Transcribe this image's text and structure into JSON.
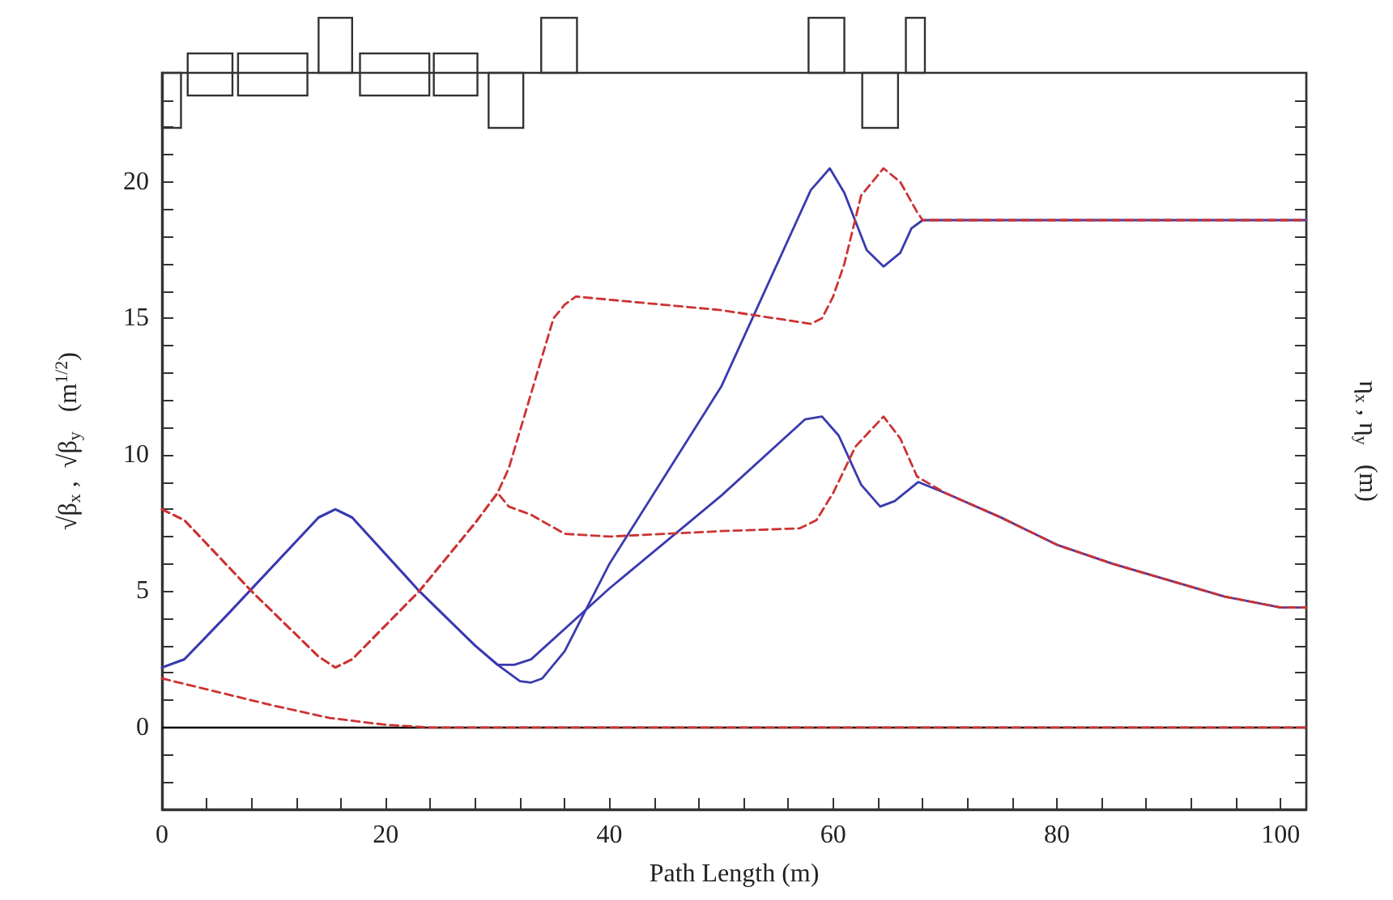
{
  "chart_data": {
    "type": "line",
    "xlabel": "Path Length (m)",
    "ylabel": "√β$_{x}$ ,  √β$_{y}$   (m$^{1/2}$)",
    "y2label": "η$_{x}$ , η$_{y}$   (m)",
    "xlim": [
      0,
      102.3
    ],
    "ylim": [
      -3,
      24
    ],
    "xticks": [
      0,
      {
        "value": 4,
        "label": null
      },
      {
        "value": 8,
        "label": null
      },
      {
        "value": 12,
        "label": null
      },
      {
        "value": 16,
        "label": null
      },
      20,
      {
        "value": 24,
        "label": null
      },
      {
        "value": 28,
        "label": null
      },
      {
        "value": 32,
        "label": null
      },
      {
        "value": 36,
        "label": null
      },
      40,
      {
        "value": 44,
        "label": null
      },
      {
        "value": 48,
        "label": null
      },
      {
        "value": 52,
        "label": null
      },
      {
        "value": 56,
        "label": null
      },
      60,
      {
        "value": 64,
        "label": null
      },
      {
        "value": 68,
        "label": null
      },
      {
        "value": 72,
        "label": null
      },
      {
        "value": 76,
        "label": null
      },
      80,
      {
        "value": 84,
        "label": null
      },
      {
        "value": 88,
        "label": null
      },
      {
        "value": 92,
        "label": null
      },
      {
        "value": 96,
        "label": null
      },
      100
    ],
    "yticks": [
      {
        "value": -2,
        "label": null
      },
      {
        "value": -1,
        "label": null
      },
      0,
      {
        "value": 1,
        "label": null
      },
      {
        "value": 2,
        "label": null
      },
      {
        "value": 3,
        "label": null
      },
      {
        "value": 4,
        "label": null
      },
      5,
      {
        "value": 6,
        "label": null
      },
      {
        "value": 7,
        "label": null
      },
      {
        "value": 8,
        "label": null
      },
      {
        "value": 9,
        "label": null
      },
      10,
      {
        "value": 11,
        "label": null
      },
      {
        "value": 12,
        "label": null
      },
      {
        "value": 13,
        "label": null
      },
      {
        "value": 14,
        "label": null
      },
      15,
      {
        "value": 16,
        "label": null
      },
      {
        "value": 17,
        "label": null
      },
      {
        "value": 18,
        "label": null
      },
      {
        "value": 19,
        "label": null
      },
      20,
      {
        "value": 21,
        "label": null
      },
      {
        "value": 22,
        "label": null
      },
      {
        "value": 23,
        "label": null
      }
    ],
    "grid": false,
    "ref_lines": [
      {
        "axis": "y",
        "value": 0,
        "color": "#000000"
      }
    ],
    "series": [
      {
        "color": "#3a3ab0",
        "line_style": "solid",
        "x": [
          0,
          2,
          6,
          14,
          15.5,
          17,
          23,
          28,
          30,
          32,
          33,
          34,
          36,
          40,
          50,
          58,
          59.7,
          61,
          63,
          64.5,
          66,
          67,
          68,
          102.3
        ],
        "values": [
          2.2,
          2.5,
          4.2,
          7.7,
          8.0,
          7.7,
          5.0,
          3.0,
          2.3,
          1.7,
          1.65,
          1.8,
          2.8,
          6.0,
          12.5,
          19.7,
          20.5,
          19.6,
          17.5,
          16.9,
          17.4,
          18.3,
          18.6,
          18.6
        ]
      },
      {
        "color": "#3a3ab0",
        "line_style": "solid",
        "x": [
          0,
          2,
          6,
          14,
          15.5,
          17,
          23,
          28,
          30,
          31.5,
          33,
          40,
          50,
          57.5,
          59,
          60.5,
          62.5,
          64.2,
          65.5,
          67.6,
          70,
          75,
          80,
          85,
          90,
          95,
          100,
          102.3
        ],
        "values": [
          2.2,
          2.5,
          4.2,
          7.7,
          8.0,
          7.7,
          5.0,
          3.0,
          2.3,
          2.3,
          2.5,
          5.1,
          8.5,
          11.3,
          11.4,
          10.7,
          8.9,
          8.1,
          8.3,
          9.0,
          8.6,
          7.7,
          6.7,
          6.0,
          5.4,
          4.8,
          4.4,
          4.4
        ]
      },
      {
        "color": "#cc3333",
        "line_style": "dashed",
        "x": [
          0,
          2,
          8,
          14,
          15.5,
          17,
          23,
          28,
          30,
          31,
          35,
          36,
          37,
          50,
          58,
          59,
          60,
          61,
          62.5,
          64.5,
          66,
          67.5,
          68,
          102.3
        ],
        "values": [
          8.0,
          7.6,
          5.0,
          2.6,
          2.2,
          2.5,
          5.0,
          7.5,
          8.6,
          9.5,
          15.0,
          15.5,
          15.8,
          15.3,
          14.8,
          15.0,
          15.8,
          17.0,
          19.5,
          20.5,
          20.0,
          18.9,
          18.6,
          18.6
        ]
      },
      {
        "color": "#cc3333",
        "line_style": "dashed",
        "x": [
          0,
          2,
          8,
          14,
          15.5,
          17,
          23,
          28,
          30,
          31,
          33,
          36,
          40,
          50,
          57,
          58.5,
          60,
          62,
          64.5,
          66,
          67.5,
          70,
          75,
          80,
          85,
          90,
          95,
          100,
          102.3
        ],
        "values": [
          8.0,
          7.6,
          5.0,
          2.6,
          2.2,
          2.5,
          5.0,
          7.5,
          8.6,
          8.1,
          7.8,
          7.1,
          7.0,
          7.2,
          7.3,
          7.6,
          8.6,
          10.3,
          11.4,
          10.6,
          9.2,
          8.6,
          7.7,
          6.7,
          6.0,
          5.4,
          4.8,
          4.4,
          4.4
        ]
      },
      {
        "color": "#cc3333",
        "line_style": "dashed",
        "x": [
          0,
          5,
          10,
          15,
          20,
          24,
          30,
          102.3
        ],
        "values": [
          1.8,
          1.3,
          0.8,
          0.35,
          0.1,
          0.0,
          0.0,
          0.0
        ]
      }
    ]
  }
}
